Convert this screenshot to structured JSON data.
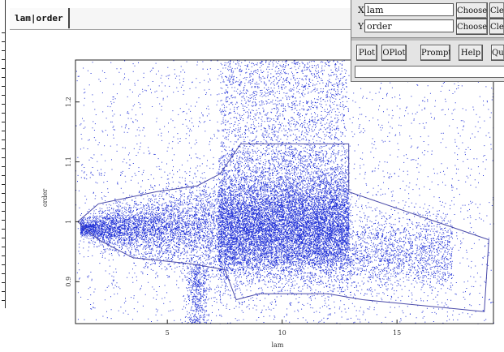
{
  "tab": {
    "label": "lam|order"
  },
  "controls": {
    "x_label": "X",
    "x_value": "lam",
    "y_label": "Y",
    "y_value": "order",
    "choose_label": "Choose",
    "clear_label": "Clear",
    "buttons": [
      "Plot",
      "OPlot",
      "Prompt",
      "Help",
      "Quit"
    ]
  },
  "colors": {
    "points": "#1f2fd6",
    "outline": "#4a4aa8"
  },
  "chart_data": {
    "type": "scatter",
    "xlabel": "lam",
    "ylabel": "order",
    "xlim": [
      1.0,
      19.2
    ],
    "ylim": [
      0.83,
      1.27
    ],
    "xticks": [
      5,
      10,
      15
    ],
    "yticks": [
      0.9,
      1,
      1.1,
      1.2
    ],
    "x_tick_labels": [
      "5",
      "10",
      "15"
    ],
    "y_tick_labels": [
      "0.9",
      "1",
      "1.1",
      "1.2"
    ],
    "grid": false,
    "density": {
      "dense_band_x": [
        7.2,
        12.9
      ],
      "dense_band_y": [
        0.93,
        1.12
      ],
      "core_center_y": 0.99
    },
    "outline": [
      [
        1.1,
        1.0
      ],
      [
        2.0,
        1.03
      ],
      [
        4.5,
        1.05
      ],
      [
        6.3,
        1.06
      ],
      [
        6.8,
        1.07
      ],
      [
        7.3,
        1.08
      ],
      [
        8.2,
        1.13
      ],
      [
        12.9,
        1.13
      ],
      [
        12.9,
        1.05
      ],
      [
        19.0,
        0.97
      ],
      [
        18.8,
        0.85
      ],
      [
        13.5,
        0.87
      ],
      [
        12.0,
        0.88
      ],
      [
        9.0,
        0.88
      ],
      [
        8.0,
        0.87
      ],
      [
        7.5,
        0.92
      ],
      [
        6.0,
        0.93
      ],
      [
        3.5,
        0.94
      ],
      [
        2.0,
        0.97
      ],
      [
        1.1,
        1.0
      ]
    ]
  }
}
